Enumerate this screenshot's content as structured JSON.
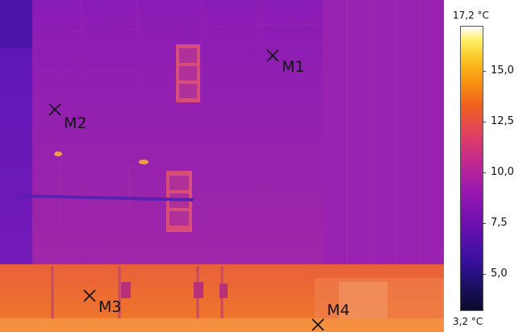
{
  "image": {
    "description_free": true,
    "markers": [
      {
        "label": "M1"
      },
      {
        "label": "M2"
      },
      {
        "label": "M3"
      },
      {
        "label": "M4"
      }
    ]
  },
  "scale": {
    "max_label": "17,2 °C",
    "min_label": "3,2 °C",
    "min_value": 3.2,
    "max_value": 17.2,
    "ticks": [
      {
        "label": "15,0",
        "value": 15.0
      },
      {
        "label": "12,5",
        "value": 12.5
      },
      {
        "label": "10,0",
        "value": 10.0
      },
      {
        "label": "7,5",
        "value": 7.5
      },
      {
        "label": "5,0",
        "value": 5.0
      }
    ]
  }
}
